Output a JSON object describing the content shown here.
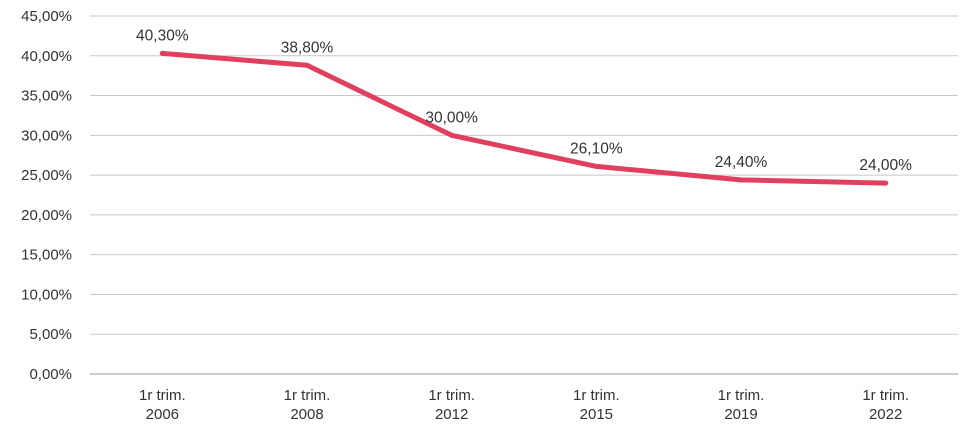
{
  "chart_data": {
    "type": "line",
    "categories": [
      [
        "1r trim.",
        "2006"
      ],
      [
        "1r trim.",
        "2008"
      ],
      [
        "1r trim.",
        "2012"
      ],
      [
        "1r trim.",
        "2015"
      ],
      [
        "1r trim.",
        "2019"
      ],
      [
        "1r trim.",
        "2022"
      ]
    ],
    "series": [
      {
        "values": [
          40.3,
          38.8,
          30.0,
          26.1,
          24.4,
          24.0
        ],
        "labels": [
          "40,30%",
          "38,80%",
          "30,00%",
          "26,10%",
          "24,40%",
          "24,00%"
        ],
        "color": "#e0405e"
      }
    ],
    "ylim": [
      0,
      45
    ],
    "yticks": [
      0,
      5,
      10,
      15,
      20,
      25,
      30,
      35,
      40,
      45
    ],
    "ytick_labels": [
      "0,00%",
      "5,00%",
      "10,00%",
      "15,00%",
      "20,00%",
      "25,00%",
      "30,00%",
      "35,00%",
      "40,00%",
      "45,00%"
    ],
    "grid": true,
    "legend": "none"
  }
}
